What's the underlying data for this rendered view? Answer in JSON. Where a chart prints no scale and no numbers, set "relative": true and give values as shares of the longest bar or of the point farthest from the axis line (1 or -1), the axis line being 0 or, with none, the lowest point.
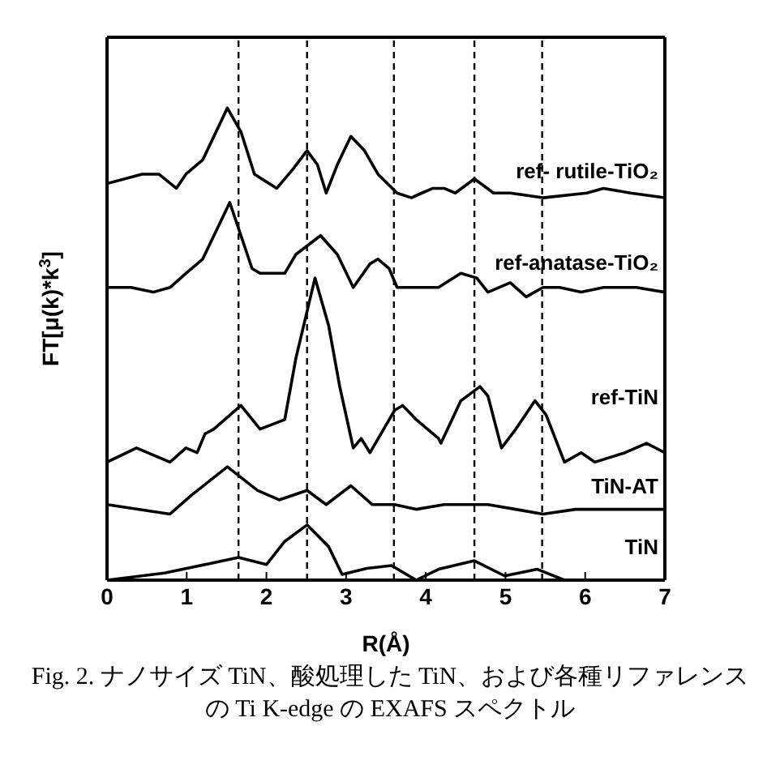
{
  "chart_data": {
    "type": "line",
    "relative": true,
    "xlabel": "R(Å)",
    "ylabel": "FT[μ(k)*k$^{3}$]",
    "xlim": [
      0,
      7
    ],
    "xticks": [
      0,
      1,
      2,
      3,
      4,
      5,
      6,
      7
    ],
    "ref_lines": [
      {
        "axis": "x",
        "value": 1.65,
        "line_style": "dashed",
        "color": "#000000"
      },
      {
        "axis": "x",
        "value": 2.51,
        "line_style": "dashed",
        "color": "#000000"
      },
      {
        "axis": "x",
        "value": 3.6,
        "line_style": "dashed",
        "color": "#000000"
      },
      {
        "axis": "x",
        "value": 4.61,
        "line_style": "dashed",
        "color": "#000000"
      },
      {
        "axis": "x",
        "value": 5.46,
        "line_style": "dashed",
        "color": "#000000"
      }
    ],
    "series": [
      {
        "name": "ref- rutile-TiO₂",
        "color": "#000000",
        "x": [
          0,
          0.44,
          0.65,
          0.87,
          0.99,
          1.2,
          1.51,
          1.68,
          1.85,
          2.13,
          2.33,
          2.51,
          2.64,
          2.75,
          2.89,
          3.06,
          3.23,
          3.4,
          3.64,
          3.82,
          3.95,
          4.09,
          4.23,
          4.37,
          4.61,
          4.85,
          5.06,
          5.47,
          6.02,
          6.23,
          6.57,
          7
        ],
        "values": [
          0.84,
          0.86,
          0.86,
          0.83,
          0.86,
          0.89,
          1.0,
          0.95,
          0.86,
          0.83,
          0.87,
          0.91,
          0.88,
          0.82,
          0.88,
          0.94,
          0.91,
          0.86,
          0.82,
          0.81,
          0.82,
          0.83,
          0.83,
          0.82,
          0.85,
          0.82,
          0.82,
          0.81,
          0.82,
          0.83,
          0.82,
          0.81
        ]
      },
      {
        "name": "ref-anatase-TiO₂",
        "color": "#000000",
        "x": [
          0,
          0.3,
          0.58,
          0.79,
          0.99,
          1.2,
          1.54,
          1.68,
          1.82,
          1.92,
          2.23,
          2.37,
          2.68,
          2.89,
          3.09,
          3.3,
          3.4,
          3.54,
          3.64,
          3.88,
          4.16,
          4.44,
          4.64,
          4.78,
          5.06,
          5.26,
          5.47,
          5.68,
          5.95,
          6.23,
          6.64,
          7
        ],
        "values": [
          0.62,
          0.62,
          0.61,
          0.62,
          0.65,
          0.68,
          0.8,
          0.73,
          0.66,
          0.65,
          0.65,
          0.69,
          0.73,
          0.69,
          0.62,
          0.67,
          0.68,
          0.66,
          0.62,
          0.62,
          0.62,
          0.65,
          0.64,
          0.61,
          0.63,
          0.6,
          0.62,
          0.62,
          0.61,
          0.62,
          0.62,
          0.61
        ]
      },
      {
        "name": "ref-TiN",
        "color": "#000000",
        "x": [
          0,
          0.37,
          0.79,
          0.99,
          1.13,
          1.23,
          1.34,
          1.68,
          1.92,
          2.23,
          2.37,
          2.61,
          2.78,
          2.92,
          3.09,
          3.19,
          3.3,
          3.61,
          3.71,
          3.88,
          4.16,
          4.19,
          4.44,
          4.68,
          4.78,
          4.95,
          5.13,
          5.37,
          5.51,
          5.74,
          5.95,
          6.12,
          6.5,
          6.77,
          7
        ],
        "values": [
          0.25,
          0.28,
          0.25,
          0.28,
          0.27,
          0.31,
          0.32,
          0.37,
          0.32,
          0.34,
          0.47,
          0.64,
          0.54,
          0.41,
          0.28,
          0.3,
          0.27,
          0.36,
          0.37,
          0.34,
          0.3,
          0.29,
          0.38,
          0.41,
          0.39,
          0.28,
          0.32,
          0.38,
          0.35,
          0.25,
          0.27,
          0.25,
          0.27,
          0.29,
          0.27
        ]
      },
      {
        "name": "TiN-AT",
        "color": "#000000",
        "x": [
          0,
          0.79,
          1.06,
          1.51,
          1.89,
          2.16,
          2.51,
          2.75,
          3.06,
          3.33,
          3.61,
          3.88,
          4.23,
          4.78,
          5.13,
          5.47,
          5.88,
          7
        ],
        "values": [
          0.16,
          0.14,
          0.18,
          0.24,
          0.19,
          0.17,
          0.19,
          0.16,
          0.2,
          0.16,
          0.16,
          0.15,
          0.16,
          0.16,
          0.15,
          0.14,
          0.15,
          0.15
        ]
      },
      {
        "name": "TiN",
        "color": "#000000",
        "x": [
          0,
          0.72,
          1.4,
          1.65,
          2.0,
          2.23,
          2.51,
          2.78,
          2.95,
          3.26,
          3.57,
          3.88,
          4.16,
          4.61,
          4.99,
          5.4,
          5.74,
          7
        ],
        "values": [
          0,
          0.015,
          0.039,
          0.048,
          0.033,
          0.082,
          0.117,
          0.071,
          0.012,
          0.025,
          0.031,
          0,
          0.023,
          0.041,
          0.009,
          0.023,
          0,
          0
        ]
      }
    ],
    "annotations": [
      "Fig. 2.  ナノサイズ TiN、酸処理した TiN、および各種リファレンスの  Ti K-edge の EXAFS スペクトル"
    ]
  }
}
